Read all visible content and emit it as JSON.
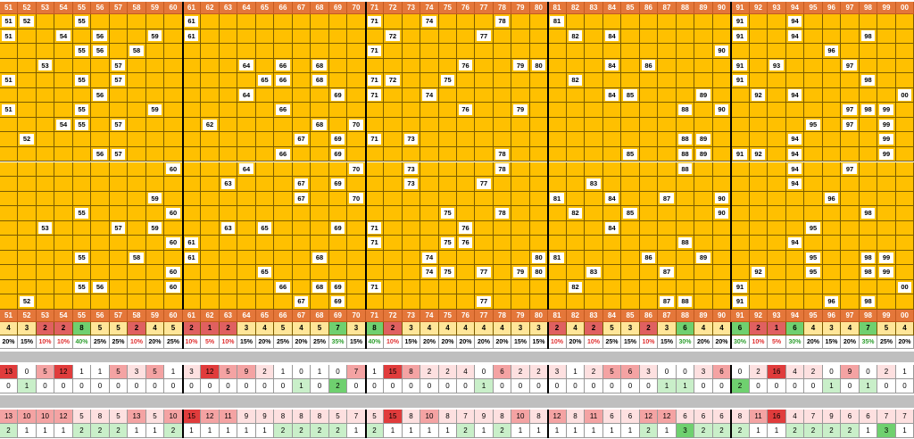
{
  "headers": [
    "51",
    "52",
    "53",
    "54",
    "55",
    "56",
    "57",
    "58",
    "59",
    "60",
    "61",
    "62",
    "63",
    "64",
    "65",
    "66",
    "67",
    "68",
    "69",
    "70",
    "71",
    "72",
    "73",
    "74",
    "75",
    "76",
    "77",
    "78",
    "79",
    "80",
    "81",
    "82",
    "83",
    "84",
    "85",
    "86",
    "87",
    "88",
    "89",
    "90",
    "91",
    "92",
    "93",
    "94",
    "95",
    "96",
    "97",
    "98",
    "99",
    "00"
  ],
  "grid_rows": [
    [
      0,
      1,
      4
    ],
    [
      0,
      10
    ],
    [
      20,
      23
    ],
    [
      27
    ],
    [
      30
    ],
    [
      40,
      43
    ],
    [
      0,
      3,
      5,
      8
    ],
    [
      10
    ],
    [
      21
    ],
    [
      26
    ],
    [
      31,
      33
    ],
    [
      40,
      43,
      47
    ],
    [
      4,
      5,
      7
    ],
    [
      39
    ],
    [
      45
    ],
    [],
    [
      20
    ],
    [],
    [
      2,
      6
    ],
    [
      13,
      15,
      17
    ],
    [
      25
    ],
    [
      28,
      29
    ],
    [
      33,
      35
    ],
    [
      40,
      42,
      46
    ],
    [
      0,
      4,
      6
    ],
    [
      14,
      15,
      17
    ],
    [
      20,
      21,
      24
    ],
    [
      31
    ],
    [],
    [
      40,
      47
    ],
    [
      5
    ],
    [
      13,
      18
    ],
    [
      20,
      23
    ],
    [
      33,
      34
    ],
    [
      38
    ],
    [
      41,
      43,
      49
    ],
    [
      0,
      4,
      8
    ],
    [
      15
    ],
    [
      25,
      28
    ],
    [
      37,
      39
    ],
    [],
    [
      46,
      47,
      48
    ],
    [
      3,
      4,
      6
    ],
    [
      11,
      17,
      19
    ],
    [],
    [],
    [],
    [
      44,
      46,
      48
    ],
    [
      1
    ],
    [
      16,
      18
    ],
    [
      20,
      22
    ],
    [
      37,
      38
    ],
    [],
    [
      43,
      48
    ],
    [
      5,
      6
    ],
    [
      15,
      18
    ],
    [
      27
    ],
    [
      34,
      37,
      38
    ],
    [],
    [
      40,
      41,
      43,
      48
    ],
    [
      9
    ],
    [
      13,
      19
    ],
    [
      22,
      27
    ],
    [
      37
    ],
    [],
    [
      43,
      46
    ],
    [],
    [
      12,
      16,
      18
    ],
    [
      22,
      26
    ],
    [
      32
    ],
    [],
    [
      43
    ],
    [
      8
    ],
    [
      16,
      19
    ],
    [],
    [
      30,
      33,
      36,
      39
    ],
    [],
    [
      45
    ],
    [
      4,
      9
    ],
    [],
    [
      24,
      27
    ],
    [
      31,
      34,
      39
    ],
    [],
    [
      47
    ],
    [
      2,
      6,
      8
    ],
    [
      12,
      14,
      18
    ],
    [
      20,
      25
    ],
    [
      33
    ],
    [],
    [
      44
    ],
    [
      9
    ],
    [
      10
    ],
    [
      20,
      24,
      25
    ],
    [
      37
    ],
    [],
    [
      43
    ],
    [
      4,
      7
    ],
    [
      10,
      17
    ],
    [
      23,
      29
    ],
    [
      30,
      35,
      38
    ],
    [],
    [
      44,
      47,
      48
    ],
    [
      9
    ],
    [
      14
    ],
    [
      23,
      24,
      26,
      28,
      29
    ],
    [
      32,
      36
    ],
    [],
    [
      41,
      44,
      47,
      48
    ],
    [
      4,
      5,
      9
    ],
    [
      15,
      17,
      18
    ],
    [
      20
    ],
    [
      31
    ],
    [],
    [
      40,
      49
    ],
    [
      1
    ],
    [
      16,
      18
    ],
    [
      26
    ],
    [
      36,
      37
    ],
    [],
    [
      40,
      45,
      47
    ]
  ],
  "counts_row": [
    "4",
    "3",
    "2",
    "2",
    "8",
    "5",
    "5",
    "2",
    "4",
    "5",
    "2",
    "1",
    "2",
    "3",
    "4",
    "5",
    "4",
    "5",
    "7",
    "3",
    "8",
    "2",
    "3",
    "4",
    "4",
    "4",
    "4",
    "4",
    "3",
    "3",
    "2",
    "4",
    "2",
    "5",
    "3",
    "2",
    "3",
    "6",
    "4",
    "4",
    "6",
    "2",
    "1",
    "6",
    "4",
    "3",
    "4",
    "7",
    "5",
    "4"
  ],
  "pct_row": [
    "20%",
    "15%",
    "10%",
    "10%",
    "40%",
    "25%",
    "25%",
    "10%",
    "20%",
    "25%",
    "10%",
    "5%",
    "10%",
    "15%",
    "20%",
    "25%",
    "20%",
    "25%",
    "35%",
    "15%",
    "40%",
    "10%",
    "15%",
    "20%",
    "20%",
    "20%",
    "20%",
    "20%",
    "15%",
    "15%",
    "10%",
    "20%",
    "10%",
    "25%",
    "15%",
    "10%",
    "15%",
    "30%",
    "20%",
    "20%",
    "30%",
    "10%",
    "5%",
    "30%",
    "20%",
    "15%",
    "20%",
    "35%",
    "25%",
    "20%"
  ],
  "stat1_row": [
    "13",
    "0",
    "5",
    "12",
    "1",
    "1",
    "5",
    "3",
    "5",
    "1",
    "3",
    "12",
    "5",
    "9",
    "2",
    "1",
    "0",
    "1",
    "0",
    "7",
    "1",
    "15",
    "8",
    "2",
    "2",
    "4",
    "0",
    "6",
    "2",
    "2",
    "3",
    "1",
    "2",
    "5",
    "6",
    "3",
    "0",
    "0",
    "3",
    "6",
    "0",
    "2",
    "16",
    "4",
    "2",
    "0",
    "9",
    "0",
    "2",
    "1"
  ],
  "stat2_row": [
    "0",
    "1",
    "0",
    "0",
    "0",
    "0",
    "0",
    "0",
    "0",
    "0",
    "0",
    "0",
    "0",
    "0",
    "0",
    "0",
    "1",
    "0",
    "2",
    "0",
    "0",
    "0",
    "0",
    "0",
    "0",
    "0",
    "1",
    "0",
    "0",
    "0",
    "0",
    "0",
    "0",
    "0",
    "0",
    "0",
    "1",
    "1",
    "0",
    "0",
    "2",
    "0",
    "0",
    "0",
    "0",
    "1",
    "0",
    "1",
    "0",
    "0"
  ],
  "stat3_row": [
    "13",
    "10",
    "10",
    "12",
    "5",
    "8",
    "5",
    "13",
    "5",
    "10",
    "15",
    "12",
    "11",
    "9",
    "9",
    "8",
    "8",
    "8",
    "5",
    "7",
    "5",
    "15",
    "8",
    "10",
    "8",
    "7",
    "9",
    "8",
    "10",
    "8",
    "12",
    "8",
    "11",
    "6",
    "6",
    "12",
    "12",
    "6",
    "6",
    "6",
    "8",
    "11",
    "16",
    "4",
    "7",
    "9",
    "6",
    "6",
    "7",
    "7"
  ],
  "stat4_row": [
    "2",
    "1",
    "1",
    "1",
    "2",
    "2",
    "2",
    "1",
    "1",
    "2",
    "1",
    "1",
    "1",
    "1",
    "1",
    "2",
    "2",
    "2",
    "2",
    "1",
    "2",
    "1",
    "1",
    "1",
    "1",
    "2",
    "1",
    "2",
    "1",
    "1",
    "1",
    "1",
    "1",
    "1",
    "1",
    "2",
    "1",
    "3",
    "2",
    "2",
    "2",
    "1",
    "1",
    "2",
    "2",
    "2",
    "2",
    "1",
    "3",
    "1"
  ],
  "colors": {
    "header": "#e4773a",
    "grid": "#ffc000",
    "count_high": "#6fd06f",
    "count_low": "#e06060",
    "count_mid": "#ffe699",
    "pct_high": "#2e9e2e",
    "pct_low": "#e03030",
    "stat_hot": "#e03c3c",
    "stat_warm": "#f4a3a3",
    "stat_light": "#fde0e0",
    "stat_green": "#6fd06f",
    "stat_lightgreen": "#c9efc9"
  }
}
